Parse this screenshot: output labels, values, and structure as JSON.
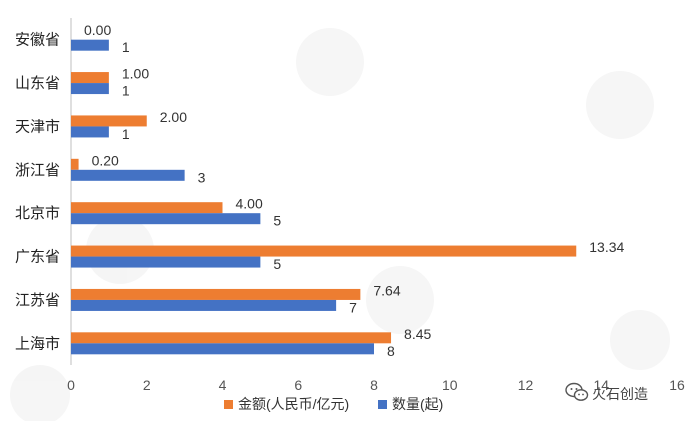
{
  "chart_data": {
    "type": "bar",
    "orientation": "horizontal",
    "categories": [
      "上海市",
      "江苏省",
      "广东省",
      "北京市",
      "浙江省",
      "天津市",
      "山东省",
      "安徽省"
    ],
    "series": [
      {
        "name": "金额(人民币/亿元)",
        "color": "#ED7D31",
        "values": [
          8.45,
          7.64,
          13.34,
          4.0,
          0.2,
          2.0,
          1.0,
          0.0
        ],
        "labels": [
          "8.45",
          "7.64",
          "13.34",
          "4.00",
          "0.20",
          "2.00",
          "1.00",
          "0.00"
        ]
      },
      {
        "name": "数量(起)",
        "color": "#4472C4",
        "values": [
          8,
          7,
          5,
          5,
          3,
          1,
          1,
          1
        ],
        "labels": [
          "8",
          "7",
          "5",
          "5",
          "3",
          "1",
          "1",
          "1"
        ]
      }
    ],
    "xlim": [
      0,
      16
    ],
    "xticks": [
      0,
      2,
      4,
      6,
      8,
      10,
      12,
      14,
      16
    ],
    "xtick_labels": [
      "0",
      "2",
      "4",
      "6",
      "8",
      "10",
      "12",
      "14",
      "16"
    ],
    "grid": false,
    "legend_position": "bottom",
    "category_order": "bottom-to-top"
  },
  "watermark": {
    "text": "火石创造",
    "icon": "wechat-icon"
  }
}
